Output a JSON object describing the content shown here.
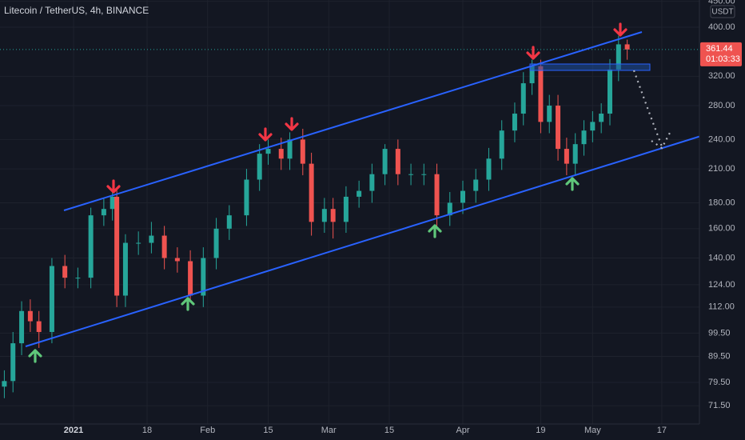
{
  "chart_data": {
    "type": "candlestick",
    "title": "Litecoin / TetherUS, 4h, BINANCE",
    "currency": "USDT",
    "countdown": "01:03:33",
    "log_scale": true,
    "grid": true,
    "up_color": "#26a69a",
    "down_color": "#ef5350",
    "x": [
      -16,
      -14,
      -12,
      -10,
      -8,
      -5,
      -2,
      1,
      4,
      7,
      9,
      10,
      12,
      15,
      18,
      21,
      24,
      27,
      30,
      33,
      36,
      40,
      43,
      45,
      48,
      50,
      53,
      55,
      58,
      60,
      63,
      66,
      69,
      72,
      75,
      78,
      81,
      84,
      87,
      90,
      93,
      96,
      99,
      102,
      104,
      106,
      108,
      110,
      112,
      114,
      116,
      118,
      120,
      122,
      124,
      126,
      128
    ],
    "open": [
      78,
      80,
      95,
      110,
      105,
      100,
      135,
      128,
      128,
      170,
      175,
      185,
      118,
      150,
      150,
      155,
      140,
      138,
      118,
      140,
      160,
      170,
      200,
      225,
      230,
      220,
      240,
      215,
      165,
      175,
      165,
      185,
      190,
      205,
      230,
      205,
      205,
      205,
      170,
      180,
      190,
      200,
      220,
      250,
      270,
      310,
      335,
      260,
      280,
      230,
      215,
      235,
      250,
      260,
      270,
      330,
      370
    ],
    "high": [
      84,
      100,
      115,
      116,
      110,
      140,
      142,
      134,
      176,
      184,
      190,
      192,
      156,
      158,
      165,
      162,
      147,
      145,
      147,
      168,
      178,
      210,
      235,
      240,
      242,
      248,
      252,
      226,
      184,
      184,
      194,
      199,
      215,
      235,
      240,
      215,
      215,
      215,
      189,
      199,
      210,
      231,
      262,
      284,
      326,
      345,
      345,
      294,
      294,
      242,
      247,
      262,
      273,
      283,
      346,
      385,
      378
    ],
    "low": [
      74,
      76,
      90,
      100,
      93,
      95,
      122,
      122,
      122,
      162,
      166,
      112,
      112,
      142,
      143,
      133,
      131,
      115,
      112,
      133,
      152,
      162,
      190,
      214,
      209,
      209,
      204,
      155,
      157,
      153,
      157,
      176,
      180,
      195,
      195,
      195,
      195,
      162,
      162,
      171,
      180,
      190,
      209,
      237,
      256,
      294,
      247,
      247,
      218,
      204,
      204,
      223,
      237,
      247,
      256,
      313,
      345
    ],
    "close": [
      80,
      95,
      110,
      105,
      100,
      135,
      128,
      128,
      170,
      175,
      185,
      118,
      150,
      150,
      155,
      140,
      138,
      118,
      140,
      160,
      170,
      200,
      225,
      230,
      220,
      240,
      215,
      165,
      175,
      165,
      185,
      190,
      205,
      230,
      205,
      205,
      205,
      170,
      180,
      190,
      200,
      220,
      250,
      270,
      310,
      335,
      260,
      280,
      230,
      215,
      235,
      250,
      260,
      270,
      330,
      370,
      361.44
    ],
    "xlim": [
      -17,
      144.7
    ],
    "xticks": [
      {
        "value": 0,
        "label": "2021"
      },
      {
        "value": 17,
        "label": "18"
      },
      {
        "value": 31,
        "label": "Feb"
      },
      {
        "value": 45,
        "label": "15"
      },
      {
        "value": 59,
        "label": "Mar"
      },
      {
        "value": 73,
        "label": "15"
      },
      {
        "value": 90,
        "label": "Apr"
      },
      {
        "value": 108,
        "label": "19"
      },
      {
        "value": 120,
        "label": "May"
      },
      {
        "value": 136,
        "label": "17"
      }
    ],
    "ylim": [
      65.8,
      452.7
    ],
    "yticks": [
      {
        "value": 71.5,
        "label": "71.50"
      },
      {
        "value": 79.5,
        "label": "79.50"
      },
      {
        "value": 89.5,
        "label": "89.50"
      },
      {
        "value": 99.5,
        "label": "99.50"
      },
      {
        "value": 112,
        "label": "112.00"
      },
      {
        "value": 124,
        "label": "124.00"
      },
      {
        "value": 140,
        "label": "140.00"
      },
      {
        "value": 160,
        "label": "160.00"
      },
      {
        "value": 180,
        "label": "180.00"
      },
      {
        "value": 210,
        "label": "210.00"
      },
      {
        "value": 240,
        "label": "240.00"
      },
      {
        "value": 280,
        "label": "280.00"
      },
      {
        "value": 320,
        "label": "320.00"
      },
      {
        "value": 400,
        "label": "400.00"
      },
      {
        "value": 450,
        "label": "450.00"
      }
    ]
  }
}
